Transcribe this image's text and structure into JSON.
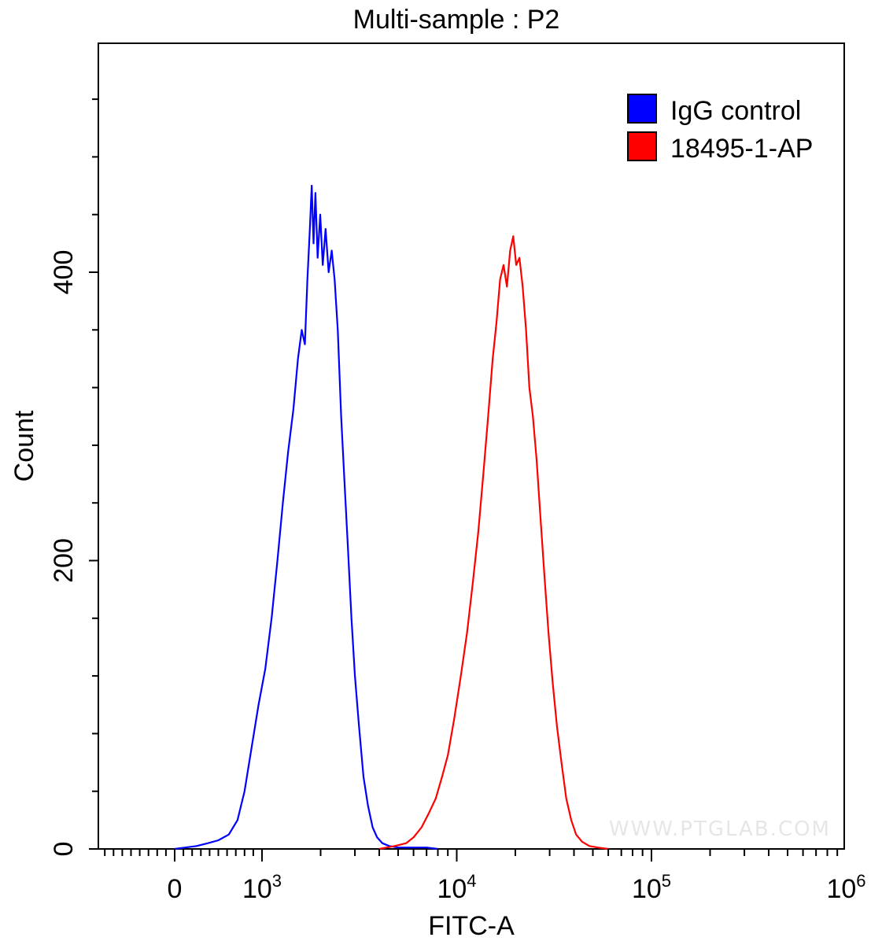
{
  "chart_data": {
    "type": "line",
    "title": "Multi-sample : P2",
    "xlabel": "FITC-A",
    "ylabel": "Count",
    "x_scale": "biexponential (linear near 0, log above 10^3)",
    "x_ticks": [
      {
        "value": 0,
        "label": "0"
      },
      {
        "value": 1000,
        "base": "10",
        "exp": "3"
      },
      {
        "value": 10000,
        "base": "10",
        "exp": "4"
      },
      {
        "value": 100000,
        "base": "10",
        "exp": "5"
      },
      {
        "value": 1000000,
        "base": "10",
        "exp": "6"
      }
    ],
    "y_ticks": [
      {
        "value": 0,
        "label": "0"
      },
      {
        "value": 200,
        "label": "200"
      },
      {
        "value": 400,
        "label": "400"
      }
    ],
    "ylim": [
      0,
      557
    ],
    "grid": false,
    "legend_position": "top-right",
    "series": [
      {
        "name": "IgG control",
        "color": "#0000ff",
        "points": [
          [
            0,
            0
          ],
          [
            120,
            1
          ],
          [
            250,
            2
          ],
          [
            380,
            4
          ],
          [
            500,
            6
          ],
          [
            620,
            10
          ],
          [
            720,
            20
          ],
          [
            800,
            40
          ],
          [
            880,
            70
          ],
          [
            960,
            100
          ],
          [
            1040,
            125
          ],
          [
            1120,
            160
          ],
          [
            1200,
            200
          ],
          [
            1280,
            240
          ],
          [
            1360,
            275
          ],
          [
            1450,
            305
          ],
          [
            1530,
            340
          ],
          [
            1600,
            360
          ],
          [
            1660,
            350
          ],
          [
            1710,
            395
          ],
          [
            1760,
            430
          ],
          [
            1800,
            460
          ],
          [
            1840,
            420
          ],
          [
            1880,
            455
          ],
          [
            1930,
            410
          ],
          [
            1990,
            440
          ],
          [
            2050,
            405
          ],
          [
            2120,
            430
          ],
          [
            2200,
            400
          ],
          [
            2280,
            415
          ],
          [
            2360,
            395
          ],
          [
            2450,
            360
          ],
          [
            2550,
            300
          ],
          [
            2650,
            255
          ],
          [
            2760,
            210
          ],
          [
            2880,
            160
          ],
          [
            3000,
            120
          ],
          [
            3150,
            85
          ],
          [
            3320,
            50
          ],
          [
            3500,
            30
          ],
          [
            3700,
            15
          ],
          [
            3900,
            8
          ],
          [
            4150,
            4
          ],
          [
            4500,
            2
          ],
          [
            5000,
            1
          ],
          [
            6000,
            1
          ],
          [
            7000,
            1
          ],
          [
            8000,
            0
          ]
        ]
      },
      {
        "name": "18495-1-AP",
        "color": "#ff0000",
        "points": [
          [
            4000,
            0
          ],
          [
            4800,
            2
          ],
          [
            5500,
            4
          ],
          [
            6000,
            8
          ],
          [
            6600,
            15
          ],
          [
            7200,
            25
          ],
          [
            7800,
            35
          ],
          [
            8400,
            50
          ],
          [
            9000,
            65
          ],
          [
            9700,
            90
          ],
          [
            10500,
            120
          ],
          [
            11300,
            150
          ],
          [
            12100,
            185
          ],
          [
            12900,
            220
          ],
          [
            13700,
            260
          ],
          [
            14500,
            300
          ],
          [
            15300,
            340
          ],
          [
            16000,
            365
          ],
          [
            16700,
            395
          ],
          [
            17400,
            405
          ],
          [
            18100,
            390
          ],
          [
            18800,
            415
          ],
          [
            19500,
            425
          ],
          [
            20200,
            405
          ],
          [
            21000,
            410
          ],
          [
            21800,
            390
          ],
          [
            22700,
            360
          ],
          [
            23600,
            320
          ],
          [
            24600,
            300
          ],
          [
            25700,
            270
          ],
          [
            26900,
            230
          ],
          [
            28200,
            190
          ],
          [
            29600,
            150
          ],
          [
            31100,
            115
          ],
          [
            32700,
            85
          ],
          [
            34500,
            60
          ],
          [
            36500,
            35
          ],
          [
            38700,
            20
          ],
          [
            41000,
            10
          ],
          [
            44000,
            5
          ],
          [
            48000,
            2
          ],
          [
            53000,
            1
          ],
          [
            60000,
            0
          ]
        ]
      }
    ]
  },
  "watermark": "WWW.PTGLAB.COM"
}
